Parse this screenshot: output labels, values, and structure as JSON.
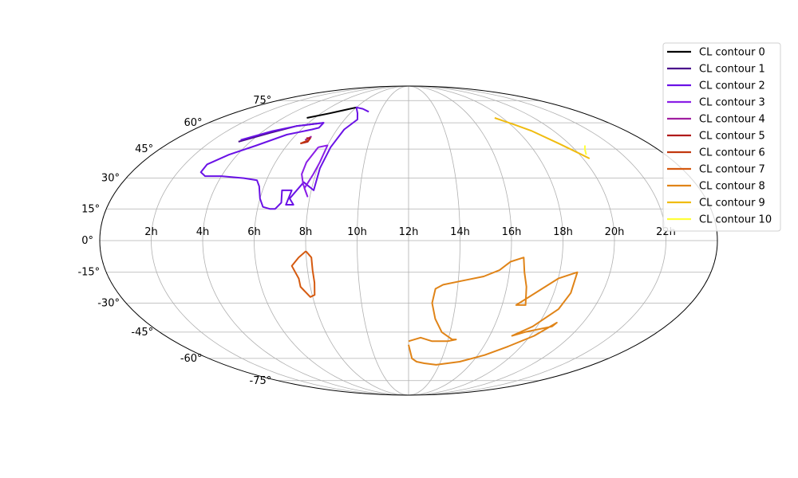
{
  "chart_data": {
    "type": "line",
    "projection": "mollweide",
    "grid": true,
    "legend_placement": "upper-right, outside plot",
    "x_tick_labels": [
      "2h",
      "4h",
      "6h",
      "8h",
      "10h",
      "12h",
      "14h",
      "16h",
      "18h",
      "20h",
      "22h"
    ],
    "x_tick_values_hours": [
      2,
      4,
      6,
      8,
      10,
      12,
      14,
      16,
      18,
      20,
      22
    ],
    "y_tick_labels": [
      "-75°",
      "-60°",
      "-45°",
      "-30°",
      "-15°",
      "0°",
      "15°",
      "30°",
      "45°",
      "60°",
      "75°"
    ],
    "y_tick_values_deg": [
      -75,
      -60,
      -45,
      -30,
      -15,
      0,
      15,
      30,
      45,
      60,
      75
    ],
    "xlabel": "",
    "ylabel": "",
    "title": "",
    "series": [
      {
        "name": "CL contour 0",
        "color": "#000000",
        "points": [
          [
            5.5,
            63
          ],
          [
            6.6,
            66
          ],
          [
            7.3,
            68
          ],
          [
            8.0,
            70
          ]
        ]
      },
      {
        "name": "CL contour 1",
        "color": "#4a0d8c",
        "points": [
          [
            3.4,
            49
          ],
          [
            4.5,
            54
          ],
          [
            5.5,
            58
          ],
          [
            6.9,
            60
          ]
        ]
      },
      {
        "name": "CL contour 2",
        "color": "#6a12e6",
        "points": [
          [
            3.4,
            50
          ],
          [
            4.5,
            55
          ],
          [
            5.5,
            58
          ],
          [
            6.9,
            60
          ],
          [
            6.9,
            57
          ],
          [
            6.6,
            56
          ],
          [
            5.5,
            53
          ],
          [
            4.5,
            47
          ],
          [
            3.6,
            42
          ],
          [
            3.0,
            37
          ],
          [
            3.0,
            33
          ],
          [
            3.3,
            31
          ],
          [
            4.0,
            31
          ],
          [
            5.0,
            30
          ],
          [
            5.6,
            29
          ],
          [
            5.8,
            26
          ],
          [
            6.0,
            20
          ],
          [
            6.2,
            16
          ],
          [
            6.5,
            15
          ],
          [
            6.7,
            15
          ],
          [
            6.9,
            18
          ],
          [
            6.8,
            24
          ],
          [
            7.2,
            24
          ],
          [
            7.1,
            17
          ],
          [
            7.4,
            17
          ],
          [
            7.2,
            20
          ],
          [
            7.6,
            28
          ],
          [
            8.1,
            24
          ],
          [
            8.1,
            35
          ],
          [
            8.2,
            46
          ],
          [
            8.4,
            56
          ],
          [
            8.8,
            62
          ],
          [
            8.5,
            66
          ],
          [
            8.0,
            70
          ],
          [
            8.6,
            69
          ],
          [
            9.2,
            67
          ]
        ]
      },
      {
        "name": "CL contour 3",
        "color": "#8a1ee6",
        "points": [
          [
            7.6,
            46
          ],
          [
            8.0,
            47
          ],
          [
            8.0,
            38
          ],
          [
            7.9,
            32
          ],
          [
            7.7,
            25
          ],
          [
            7.9,
            21
          ],
          [
            7.6,
            27
          ],
          [
            7.4,
            32
          ],
          [
            7.4,
            38
          ],
          [
            7.6,
            46
          ]
        ]
      },
      {
        "name": "CL contour 4",
        "color": "#a01fa0",
        "points": [
          [
            6.7,
            50
          ],
          [
            6.9,
            52
          ]
        ]
      },
      {
        "name": "CL contour 5",
        "color": "#b01a1a",
        "points": [
          [
            6.6,
            48
          ],
          [
            6.9,
            49
          ],
          [
            6.9,
            51
          ],
          [
            6.7,
            51
          ]
        ]
      },
      {
        "name": "CL contour 6",
        "color": "#c2380f",
        "points": [
          [
            6.6,
            48
          ],
          [
            6.9,
            50
          ]
        ]
      },
      {
        "name": "CL contour 7",
        "color": "#d55a10",
        "points": [
          [
            8.0,
            -5
          ],
          [
            8.2,
            -8
          ],
          [
            8.2,
            -14
          ],
          [
            8.2,
            -20
          ],
          [
            8.1,
            -26
          ],
          [
            7.9,
            -27
          ],
          [
            7.6,
            -22
          ],
          [
            7.6,
            -18
          ],
          [
            7.4,
            -12
          ],
          [
            7.7,
            -8
          ],
          [
            8.0,
            -5
          ]
        ]
      },
      {
        "name": "CL contour 8",
        "color": "#e08418",
        "points": [
          [
            12.0,
            -52
          ],
          [
            12.2,
            -60
          ],
          [
            12.5,
            -62
          ],
          [
            13.0,
            -63
          ],
          [
            13.8,
            -64
          ],
          [
            15.2,
            -62
          ],
          [
            16.4,
            -58
          ],
          [
            17.3,
            -53
          ],
          [
            18.2,
            -47
          ],
          [
            18.8,
            -40
          ],
          [
            18.7,
            -42
          ],
          [
            17.6,
            -45
          ],
          [
            17.1,
            -47
          ],
          [
            17.8,
            -42
          ],
          [
            18.5,
            -33
          ],
          [
            18.7,
            -25
          ],
          [
            18.7,
            -15
          ],
          [
            18.0,
            -18
          ],
          [
            16.6,
            -31
          ],
          [
            17.0,
            -31
          ],
          [
            16.8,
            -22
          ],
          [
            16.6,
            -15
          ],
          [
            16.5,
            -8
          ],
          [
            16.0,
            -10
          ],
          [
            15.6,
            -14
          ],
          [
            15.0,
            -17
          ],
          [
            14.2,
            -19
          ],
          [
            13.4,
            -21
          ],
          [
            13.1,
            -23
          ],
          [
            13.0,
            -30
          ],
          [
            13.2,
            -38
          ],
          [
            13.6,
            -45
          ],
          [
            14.2,
            -49
          ],
          [
            14.4,
            -49
          ],
          [
            14.0,
            -50
          ],
          [
            13.2,
            -50
          ],
          [
            12.6,
            -48
          ],
          [
            12.0,
            -50
          ]
        ]
      },
      {
        "name": "CL contour 9",
        "color": "#f0bc10",
        "points": [
          [
            17.5,
            63
          ],
          [
            18.2,
            59
          ],
          [
            18.8,
            55
          ],
          [
            19.5,
            48
          ],
          [
            20.1,
            42
          ],
          [
            20.3,
            40
          ]
        ]
      },
      {
        "name": "CL contour 10",
        "color": "#ffff3a",
        "points": [
          [
            20.3,
            42
          ],
          [
            20.5,
            45
          ],
          [
            20.7,
            47
          ]
        ]
      }
    ]
  }
}
